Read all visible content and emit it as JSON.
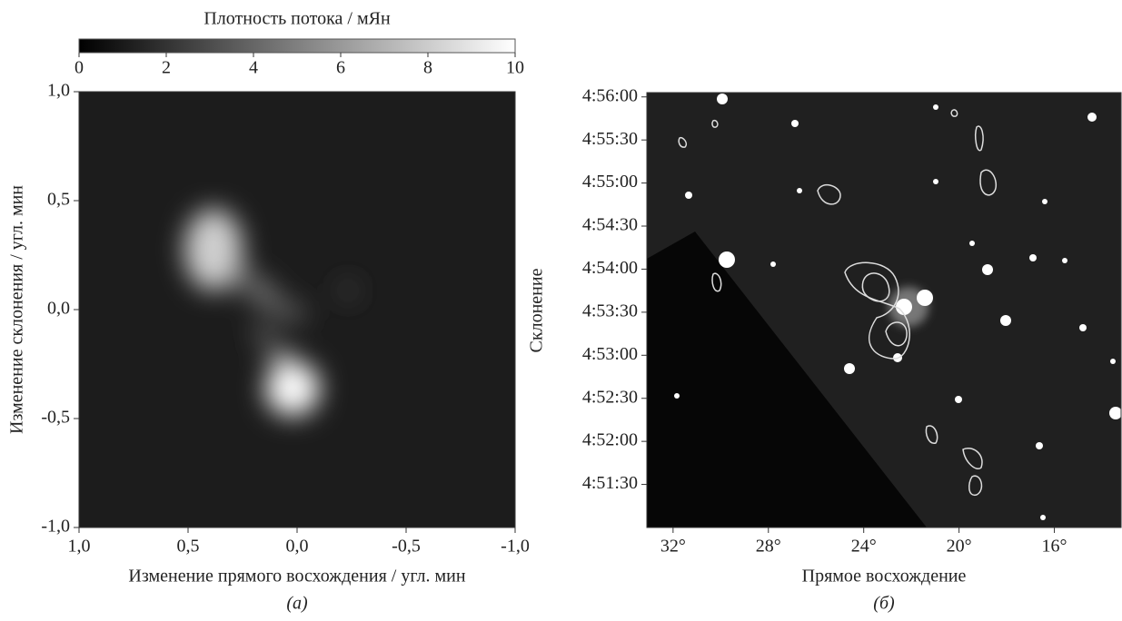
{
  "chart_data": [
    {
      "type": "image",
      "colorbar": {
        "label": "Плотность потока / мЯн",
        "lim": [
          0,
          10
        ],
        "ticks": [
          0,
          2,
          4,
          6,
          8,
          10
        ]
      },
      "xlabel": "Изменение прямого восхождения / угл. мин",
      "ylabel": "Изменение склонения / угл. мин",
      "caption": "(а)",
      "xlim": [
        1,
        -1
      ],
      "ylim": [
        -1,
        1
      ],
      "xticks": [
        {
          "value": 1,
          "label": "1,0"
        },
        {
          "value": 0.5,
          "label": "0,5"
        },
        {
          "value": 0,
          "label": "0,0"
        },
        {
          "value": -0.5,
          "label": "-0,5"
        },
        {
          "value": -1,
          "label": "-1,0"
        }
      ],
      "yticks": [
        {
          "value": 1,
          "label": "1,0"
        },
        {
          "value": 0.5,
          "label": "0,5"
        },
        {
          "value": 0,
          "label": "0,0"
        },
        {
          "value": -0.5,
          "label": "-0,5"
        },
        {
          "value": -1,
          "label": "-1,0"
        }
      ]
    },
    {
      "type": "image",
      "xlabel": "Прямое восхождение",
      "ylabel": "Склонение",
      "caption": "(б)",
      "xlim": [
        33.1,
        13.2
      ],
      "ylim": [
        17460,
        17763
      ],
      "xticks": [
        {
          "value": 32,
          "label": "32°"
        },
        {
          "value": 28,
          "label": "28°"
        },
        {
          "value": 24,
          "label": "24°"
        },
        {
          "value": 20,
          "label": "20°"
        },
        {
          "value": 16,
          "label": "16°"
        }
      ],
      "yticks": [
        {
          "value": 17760,
          "label": "4:56:00"
        },
        {
          "value": 17730,
          "label": "4:55:30"
        },
        {
          "value": 17700,
          "label": "4:55:00"
        },
        {
          "value": 17670,
          "label": "4:54:30"
        },
        {
          "value": 17640,
          "label": "4:54:00"
        },
        {
          "value": 17610,
          "label": "4:53:30"
        },
        {
          "value": 17580,
          "label": "4:53:00"
        },
        {
          "value": 17550,
          "label": "4:52:30"
        },
        {
          "value": 17520,
          "label": "4:52:00"
        },
        {
          "value": 17490,
          "label": "4:51:30"
        }
      ]
    }
  ]
}
